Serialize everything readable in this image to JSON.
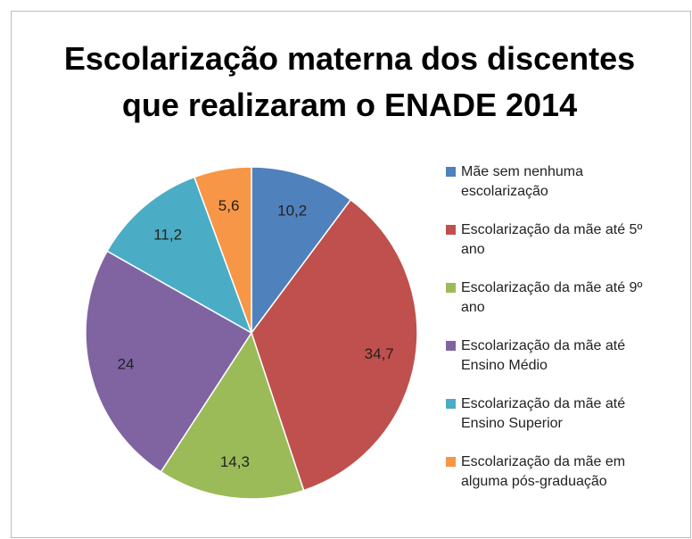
{
  "chart_data": {
    "type": "pie",
    "title": [
      "Escolarização materna dos discentes",
      "que realizaram o ENADE 2014"
    ],
    "categories": [
      "Mãe sem nenhuma escolarização",
      "Escolarização da mãe até 5º ano",
      "Escolarização da mãe até 9º ano",
      "Escolarização da mãe até Ensino Médio",
      "Escolarização da mãe até Ensino Superior",
      "Escolarização da mãe em alguma pós-graduação"
    ],
    "values": [
      10.2,
      34.7,
      14.3,
      24,
      11.2,
      5.6
    ],
    "value_labels": [
      "10,2",
      "34,7",
      "14,3",
      "24",
      "11,2",
      "5,6"
    ],
    "colors": [
      "#4f81bd",
      "#c0504d",
      "#9bbb59",
      "#8064a2",
      "#4bacc6",
      "#f79646"
    ],
    "legend": "right"
  }
}
